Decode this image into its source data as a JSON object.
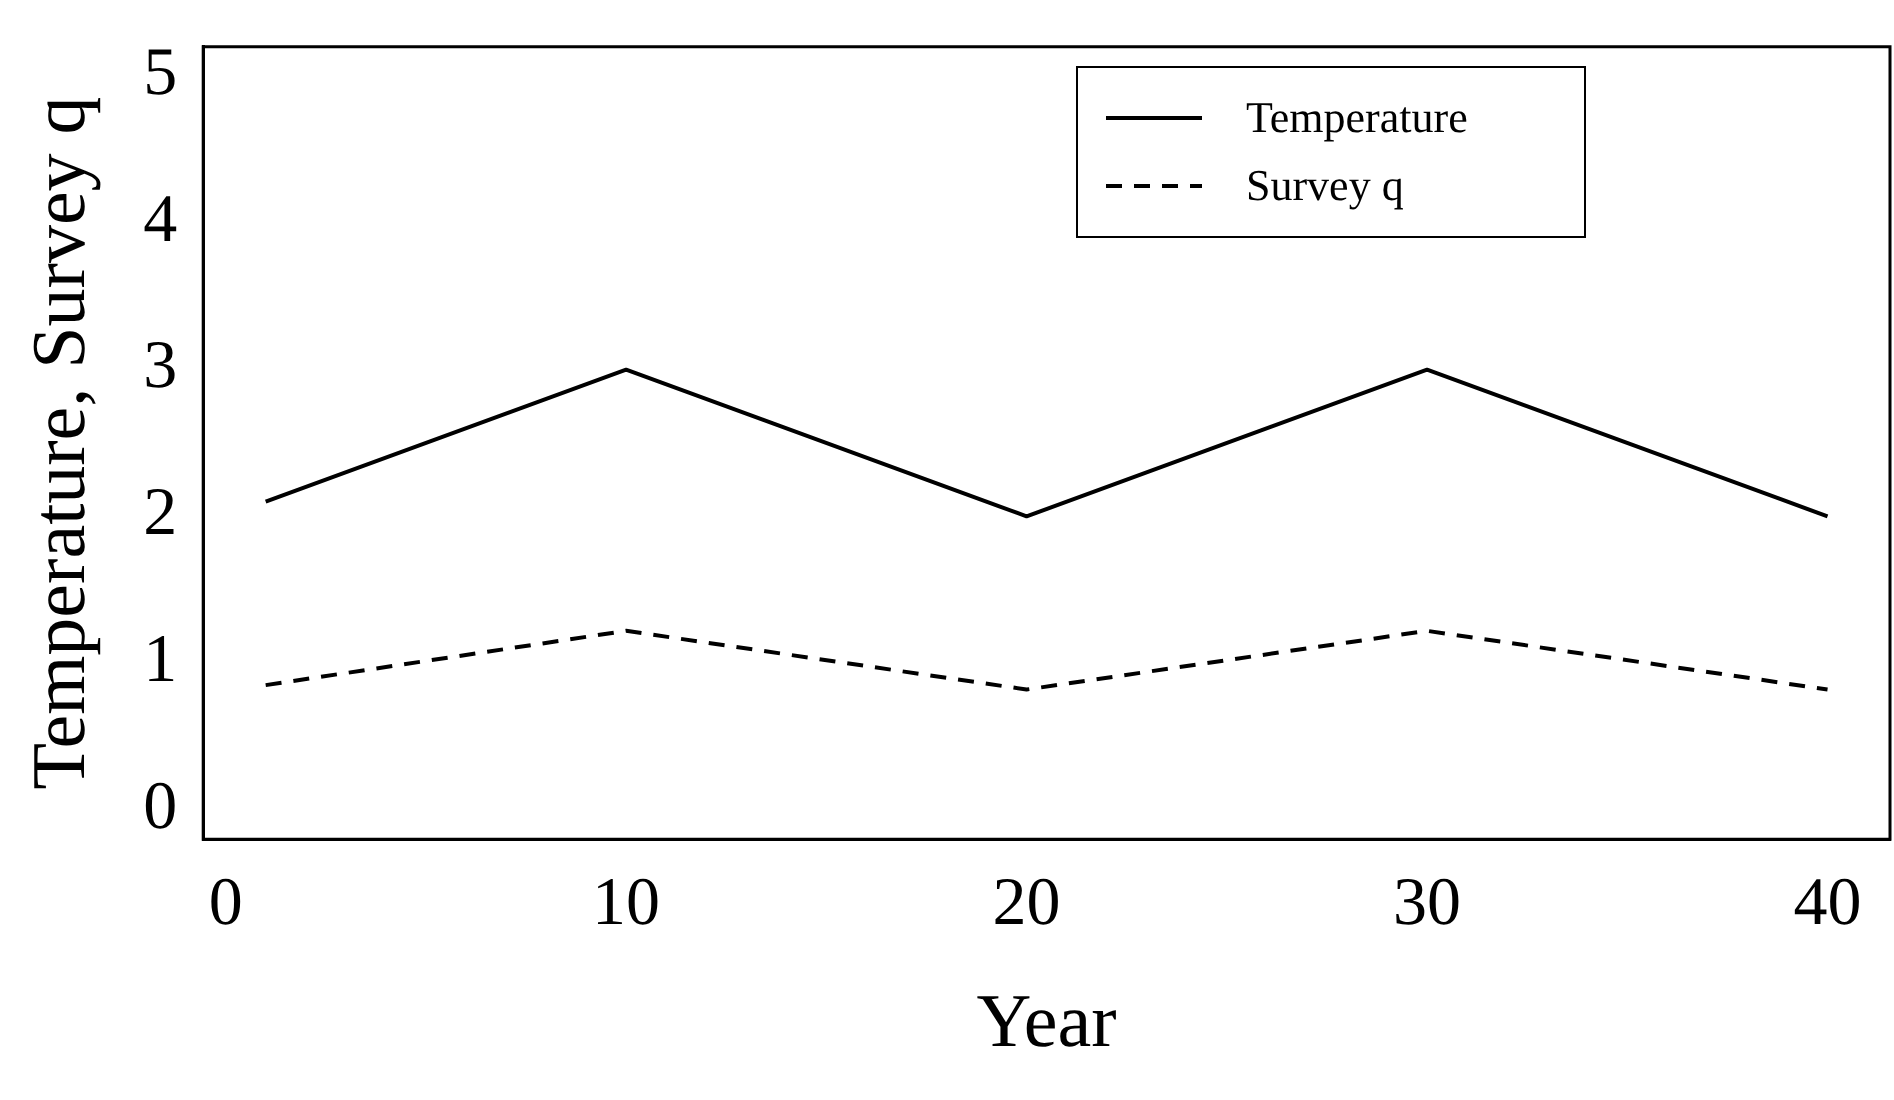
{
  "chart_data": {
    "type": "line",
    "xlabel": "Year",
    "ylabel": "Temperature, Survey q",
    "x": [
      1,
      10,
      20,
      30,
      40
    ],
    "series": [
      {
        "name": "Temperature",
        "color": "#000000",
        "values": [
          2.1,
          3,
          2,
          3,
          2
        ],
        "line_style": "solid"
      },
      {
        "name": "Survey q",
        "color": "#000000",
        "values": [
          0.85,
          1.22,
          0.82,
          1.22,
          0.82
        ],
        "line_style": "dashed"
      }
    ],
    "xlim": [
      -0.56,
      41.56
    ],
    "xticks": [
      0,
      10,
      20,
      30,
      40
    ],
    "ylim": [
      -0.2,
      5.2
    ],
    "yticks": [
      0,
      1,
      2,
      3,
      4,
      5
    ],
    "grid": false,
    "legend": "top right",
    "marker": "none"
  }
}
